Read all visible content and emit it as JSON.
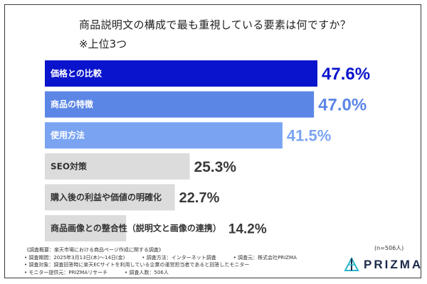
{
  "chart_data": {
    "type": "bar",
    "orientation": "horizontal",
    "title": "商品説明文の構成で最も重視している要素は何ですか？",
    "subtitle": "※上位3つ",
    "categories": [
      "価格との比較",
      "商品の特徴",
      "使用方法",
      "SEO対策",
      "購入後の利益や価値の明確化",
      "商品画像との整合性（説明文と画像の連携）"
    ],
    "values": [
      47.6,
      47.0,
      41.5,
      25.3,
      22.7,
      14.2
    ],
    "value_labels": [
      "47.6%",
      "47.0%",
      "41.5%",
      "25.3%",
      "22.7%",
      "14.2%"
    ],
    "unit": "%",
    "xlim": [
      0,
      50
    ],
    "grid": false,
    "colors": {
      "bars": [
        "#0a14cc",
        "#5b86e6",
        "#7aa4f2",
        "#dcdcdc",
        "#dcdcdc",
        "#dcdcdc"
      ],
      "value_text": [
        "#0a14cc",
        "#5b86e6",
        "#7aa4f2",
        "#3a3a3a",
        "#3a3a3a",
        "#3a3a3a"
      ],
      "bar_text": [
        "#ffffff",
        "#ffffff",
        "#ffffff",
        "#333333",
        "#333333",
        "#333333"
      ]
    }
  },
  "footnotes": {
    "line1": "《調査概要：楽天市場における商品ページ作成に関する調査》",
    "line2a": "• 調査期間：2025年3月13日(木)〜14日(金)",
    "line2b": "• 調査方法：インターネット調査",
    "line2c": "• 調査元：株式会社PRIZMA",
    "line3": "• 調査対象：調査回答時に楽天ECサイトを利用している企業の運営担当者であると回答したモニター",
    "line4a": "• モニター提供元：PRIZMAリサーチ",
    "line4b": "• 調査人数：506人"
  },
  "sample_count": "(n=506人)",
  "logo": {
    "text": "PRIZMA",
    "icon": "prizma-logo-icon"
  }
}
